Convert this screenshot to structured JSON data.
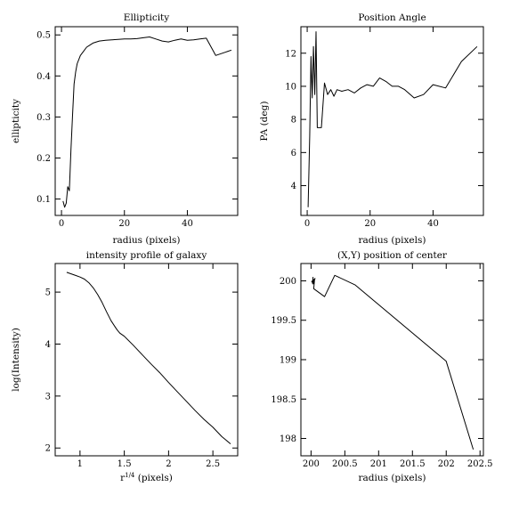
{
  "chart_data": [
    {
      "type": "line",
      "title": "Ellipticity",
      "xlabel": "radius (pixels)",
      "ylabel": "ellipticity",
      "xlim": [
        -2,
        56
      ],
      "ylim": [
        0.06,
        0.52
      ],
      "xticks": [
        0,
        20,
        40
      ],
      "yticks": [
        0.1,
        0.2,
        0.3,
        0.4,
        0.5
      ],
      "series": [
        {
          "x": [
            0.5,
            1,
            1.5,
            2,
            2.5,
            3,
            3.5,
            4,
            4.5,
            5,
            5.5,
            6,
            7,
            8,
            9,
            10,
            12,
            14,
            16,
            18,
            20,
            22,
            24,
            26,
            28,
            30,
            32,
            34,
            36,
            38,
            40,
            42,
            44,
            46,
            49,
            54
          ],
          "y": [
            0.095,
            0.08,
            0.09,
            0.13,
            0.12,
            0.22,
            0.3,
            0.38,
            0.41,
            0.43,
            0.44,
            0.45,
            0.46,
            0.47,
            0.475,
            0.48,
            0.485,
            0.487,
            0.488,
            0.489,
            0.49,
            0.49,
            0.491,
            0.493,
            0.495,
            0.49,
            0.485,
            0.483,
            0.487,
            0.49,
            0.487,
            0.488,
            0.49,
            0.492,
            0.45,
            0.463
          ]
        }
      ]
    },
    {
      "type": "line",
      "title": "Position Angle",
      "xlabel": "radius (pixels)",
      "ylabel": "PA (deg)",
      "xlim": [
        -2,
        56
      ],
      "ylim": [
        2.2,
        13.6
      ],
      "xticks": [
        0,
        20,
        40
      ],
      "yticks": [
        4,
        6,
        8,
        10,
        12
      ],
      "series": [
        {
          "x": [
            0.3,
            0.8,
            1.2,
            1.6,
            2,
            2.4,
            2.8,
            3.2,
            3.6,
            4.5,
            5.5,
            6.5,
            7.5,
            8.5,
            9.5,
            11,
            13,
            15,
            17,
            19,
            21,
            23,
            25,
            27,
            29,
            31,
            34,
            37,
            40,
            44,
            49,
            54
          ],
          "y": [
            2.7,
            7,
            11.8,
            9.3,
            12.4,
            9.5,
            13.3,
            7.5,
            7.5,
            7.5,
            10.2,
            9.5,
            9.8,
            9.4,
            9.8,
            9.7,
            9.8,
            9.6,
            9.9,
            10.1,
            10,
            10.5,
            10.3,
            10,
            10,
            9.8,
            9.3,
            9.5,
            10.1,
            9.9,
            11.5,
            12.4
          ]
        }
      ]
    },
    {
      "type": "line",
      "title": "intensity profile of galaxy",
      "xlabel": "r^{1/4} (pixels)",
      "ylabel": "log(Intensity)",
      "xlim": [
        0.72,
        2.78
      ],
      "ylim": [
        1.85,
        5.55
      ],
      "xticks": [
        1,
        1.5,
        2,
        2.5
      ],
      "yticks": [
        2,
        3,
        4,
        5
      ],
      "series": [
        {
          "x": [
            0.85,
            0.95,
            1.0,
            1.05,
            1.1,
            1.15,
            1.2,
            1.25,
            1.3,
            1.35,
            1.4,
            1.42,
            1.45,
            1.5,
            1.6,
            1.7,
            1.8,
            1.9,
            2.0,
            2.1,
            2.2,
            2.3,
            2.4,
            2.5,
            2.6,
            2.7
          ],
          "y": [
            5.38,
            5.32,
            5.29,
            5.25,
            5.18,
            5.08,
            4.95,
            4.8,
            4.62,
            4.45,
            4.32,
            4.27,
            4.21,
            4.15,
            3.98,
            3.8,
            3.62,
            3.45,
            3.26,
            3.08,
            2.9,
            2.72,
            2.55,
            2.4,
            2.22,
            2.08
          ]
        }
      ]
    },
    {
      "type": "line",
      "title": "(X,Y) position of center",
      "xlabel": "radius (pixels)",
      "ylabel": "",
      "xlim": [
        199.85,
        202.55
      ],
      "ylim": [
        197.78,
        200.22
      ],
      "xticks": [
        200,
        200.5,
        201,
        201.5,
        202,
        202.5
      ],
      "yticks": [
        198,
        198.5,
        199,
        199.5,
        200
      ],
      "series": [
        {
          "x": [
            200.03,
            200.02,
            200.05,
            200.01,
            200.06,
            200.03,
            200.05,
            200.04,
            200.2,
            200.35,
            200.65,
            202.0,
            202.4
          ],
          "y": [
            200.05,
            199.97,
            200.02,
            199.99,
            200.03,
            199.96,
            200.0,
            199.9,
            199.8,
            200.07,
            199.95,
            198.98,
            197.86
          ]
        }
      ]
    }
  ]
}
